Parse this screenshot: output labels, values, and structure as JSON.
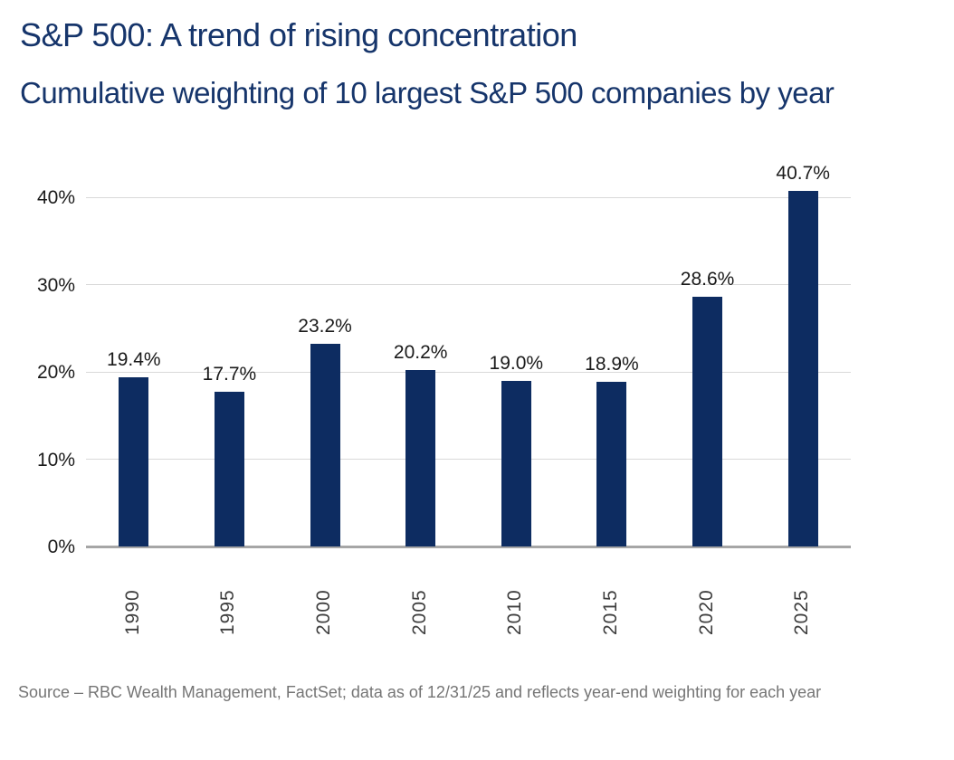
{
  "header": {
    "title": "S&P 500: A trend of rising concentration",
    "subtitle": "Cumulative weighting of 10 largest S&P 500 companies by year"
  },
  "chart_data": {
    "type": "bar",
    "title": "S&P 500: A trend of rising concentration",
    "subtitle": "Cumulative weighting of 10 largest S&P 500 companies by year",
    "categories": [
      "1990",
      "1995",
      "2000",
      "2005",
      "2010",
      "2015",
      "2020",
      "2025"
    ],
    "values": [
      19.4,
      17.7,
      23.2,
      20.2,
      19.0,
      18.9,
      28.6,
      40.7
    ],
    "bar_labels": [
      "19.4%",
      "17.7%",
      "23.2%",
      "20.2%",
      "19.0%",
      "18.9%",
      "28.6%",
      "40.7%"
    ],
    "xlabel": "",
    "ylabel": "",
    "ylim": [
      0,
      45
    ],
    "ytick_values": [
      0,
      10,
      20,
      30,
      40
    ],
    "ytick_labels": [
      "0%",
      "10%",
      "20%",
      "30%",
      "40%"
    ],
    "grid": true,
    "legend": "none",
    "bar_color": "#0d2c61",
    "gridline_color": "#d9d9d9",
    "axis_line_color": "#a6a6a6"
  },
  "colors": {
    "title": "#16356b",
    "bar": "#0d2c61",
    "value_label": "#1a1a1a",
    "source": "#757575"
  },
  "footer": {
    "source": "Source – RBC Wealth Management, FactSet; data as of 12/31/25 and reflects year-end weighting for each year"
  }
}
